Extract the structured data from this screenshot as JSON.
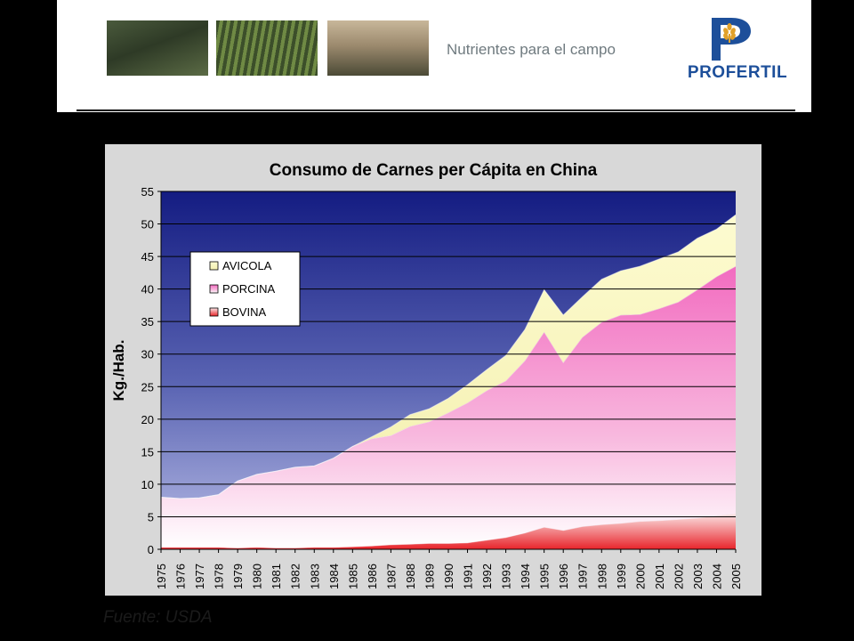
{
  "header": {
    "tagline": "Nutrientes para el campo",
    "brand": "PROFERTIL",
    "brand_color": "#1d4f9a"
  },
  "source": "Fuente: USDA",
  "chart_data": {
    "type": "area",
    "stacked": true,
    "title": "Consumo de Carnes per Cápita en China",
    "xlabel": "",
    "ylabel": "Kg./Hab.",
    "ylim": [
      0,
      55
    ],
    "yticks": [
      0,
      5,
      10,
      15,
      20,
      25,
      30,
      35,
      40,
      45,
      50,
      55
    ],
    "grid": true,
    "legend": "top-left",
    "categories": [
      "1975",
      "1976",
      "1977",
      "1978",
      "1979",
      "1980",
      "1981",
      "1982",
      "1983",
      "1984",
      "1985",
      "1986",
      "1987",
      "1988",
      "1989",
      "1990",
      "1991",
      "1992",
      "1993",
      "1994",
      "1995",
      "1996",
      "1997",
      "1998",
      "1999",
      "2000",
      "2001",
      "2002",
      "2003",
      "2004",
      "2005"
    ],
    "series": [
      {
        "name": "BOVINA",
        "color": "#e8242a",
        "values": [
          0.3,
          0.3,
          0.3,
          0.3,
          0.2,
          0.3,
          0.2,
          0.2,
          0.3,
          0.3,
          0.4,
          0.5,
          0.7,
          0.8,
          0.9,
          0.9,
          1.0,
          1.4,
          1.8,
          2.5,
          3.4,
          2.9,
          3.5,
          3.8,
          4.0,
          4.3,
          4.4,
          4.6,
          4.8,
          5.2,
          5.5
        ]
      },
      {
        "name": "PORCINA",
        "color": "#f26cc0",
        "values": [
          7.7,
          7.5,
          7.6,
          8.1,
          10.3,
          11.2,
          11.8,
          12.4,
          12.5,
          13.7,
          15.4,
          16.5,
          16.8,
          18.1,
          18.7,
          20.1,
          21.5,
          23.0,
          24.1,
          26.5,
          30.0,
          25.8,
          29.1,
          31.1,
          32.0,
          31.8,
          32.6,
          33.4,
          35.1,
          36.7,
          38.0
        ]
      },
      {
        "name": "AVICOLA",
        "color": "#fdfbd0",
        "values": [
          0.0,
          0.0,
          0.0,
          0.0,
          0.0,
          0.0,
          0.0,
          0.0,
          0.0,
          0.0,
          0.0,
          0.3,
          1.3,
          1.8,
          2.0,
          2.2,
          2.8,
          3.2,
          3.9,
          4.8,
          6.5,
          7.3,
          6.2,
          6.6,
          6.8,
          7.4,
          7.6,
          7.7,
          7.9,
          7.3,
          7.9
        ]
      }
    ]
  }
}
